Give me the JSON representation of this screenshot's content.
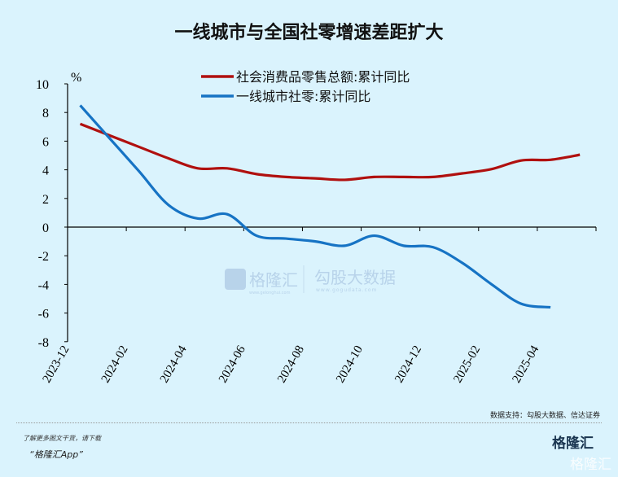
{
  "chart_data": {
    "type": "line",
    "title": "一线城市与全国社零增速差距扩大",
    "ylabel": "%",
    "ylim": [
      -8,
      10
    ],
    "yticks": [
      10,
      8,
      6,
      4,
      2,
      0,
      -2,
      -4,
      -6,
      -8
    ],
    "x": [
      "2023-12",
      "2024-01",
      "2024-02",
      "2024-03",
      "2024-04",
      "2024-05",
      "2024-06",
      "2024-07",
      "2024-08",
      "2024-09",
      "2024-10",
      "2024-11",
      "2024-12",
      "2025-01",
      "2025-02",
      "2025-03",
      "2025-04",
      "2025-05"
    ],
    "xticklabels": [
      "2023-12",
      "2024-02",
      "2024-04",
      "2024-06",
      "2024-08",
      "2024-10",
      "2024-12",
      "2025-02",
      "2025-04"
    ],
    "legend": "top-center",
    "grid": false,
    "series": [
      {
        "name": "社会消费品零售总额:累计同比",
        "color": "#b0100f",
        "values": [
          7.2,
          6.4,
          5.6,
          4.8,
          4.1,
          4.1,
          3.7,
          3.5,
          3.4,
          3.3,
          3.5,
          3.5,
          3.5,
          3.75,
          4.05,
          4.65,
          4.7,
          5.05
        ]
      },
      {
        "name": "一线城市社零:累计同比",
        "color": "#1673c4",
        "values": [
          8.5,
          6.2,
          3.9,
          1.55,
          0.6,
          0.9,
          -0.6,
          -0.8,
          -1.0,
          -1.3,
          -0.6,
          -1.3,
          -1.4,
          -2.5,
          -4.0,
          -5.35,
          -5.6,
          null
        ]
      }
    ]
  },
  "watermark": {
    "brand": "格隆汇",
    "brand_url": "www.gelonghui.com",
    "data": "勾股大数据",
    "data_url": "www.gogudata.com"
  },
  "source": "数据支持：勾股大数据、信达证券",
  "promo": {
    "line1": "了解更多图文干货，请下载",
    "line2": "“格隆汇App”"
  },
  "logo": "格隆汇"
}
